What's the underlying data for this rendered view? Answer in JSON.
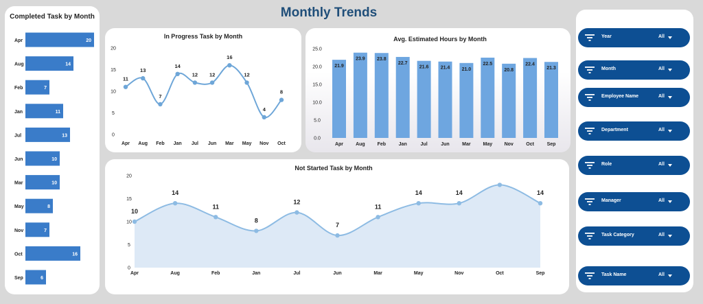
{
  "page": {
    "title": "Monthly Trends"
  },
  "chart_data": [
    {
      "id": "completed",
      "type": "bar",
      "orientation": "horizontal",
      "title": "Completed Task by Month",
      "categories": [
        "Apr",
        "Aug",
        "Feb",
        "Jan",
        "Jul",
        "Jun",
        "Mar",
        "May",
        "Nov",
        "Oct",
        "Sep"
      ],
      "values": [
        20,
        14,
        7,
        11,
        13,
        10,
        10,
        8,
        7,
        16,
        6
      ],
      "xlim": [
        0,
        20
      ],
      "color": "#3a7cc9"
    },
    {
      "id": "inprogress",
      "type": "line",
      "title": "In Progress Task by Month",
      "categories": [
        "Apr",
        "Aug",
        "Feb",
        "Jan",
        "Jul",
        "Jun",
        "Mar",
        "May",
        "Nov",
        "Oct"
      ],
      "values": [
        11,
        13,
        7,
        14,
        12,
        12,
        16,
        12,
        4,
        8
      ],
      "ylim": [
        0,
        20
      ],
      "yticks": [
        0,
        5,
        10,
        15,
        20
      ],
      "color": "#6ea6d8"
    },
    {
      "id": "hours",
      "type": "bar",
      "title": "Avg. Estimated Hours by Month",
      "categories": [
        "Apr",
        "Aug",
        "Feb",
        "Jan",
        "Jul",
        "Jun",
        "Mar",
        "May",
        "Nov",
        "Oct",
        "Sep"
      ],
      "values": [
        21.9,
        23.9,
        23.8,
        22.7,
        21.6,
        21.4,
        21.0,
        22.5,
        20.8,
        22.4,
        21.3
      ],
      "ylim": [
        0,
        25
      ],
      "yticks": [
        "0.0",
        "5.0",
        "10.0",
        "15.0",
        "20.0",
        "25.0"
      ],
      "color": "#6ea6e0"
    },
    {
      "id": "notstarted",
      "type": "area",
      "title": "Not Started Task by Month",
      "categories": [
        "Apr",
        "Aug",
        "Feb",
        "Jan",
        "Jul",
        "Jun",
        "Mar",
        "May",
        "Nov",
        "Oct",
        "Sep"
      ],
      "values": [
        10,
        14,
        11,
        8,
        12,
        7,
        11,
        14,
        14,
        18,
        14
      ],
      "labels": [
        "10",
        "14",
        "11",
        "8",
        "12",
        "7",
        "11",
        "14",
        "14",
        "",
        "14"
      ],
      "ylim": [
        0,
        20
      ],
      "yticks": [
        0,
        5,
        10,
        15,
        20
      ],
      "color": "#8dbbe3",
      "fill": "#dde9f6"
    }
  ],
  "filters": [
    {
      "label": "Year",
      "value": "All",
      "icon": "filter-icon"
    },
    {
      "label": "Month",
      "value": "All",
      "icon": "filter-icon"
    },
    {
      "label": "Employee Name",
      "value": "All",
      "icon": "filter-icon"
    },
    {
      "label": "Department",
      "value": "All",
      "icon": "filter-icon"
    },
    {
      "label": "Role",
      "value": "All",
      "icon": "filter-icon"
    },
    {
      "label": "Manager",
      "value": "All",
      "icon": "filter-icon"
    },
    {
      "label": "Task Category",
      "value": "All",
      "icon": "filter-icon"
    },
    {
      "label": "Task Name",
      "value": "All",
      "icon": "filter-icon"
    }
  ]
}
